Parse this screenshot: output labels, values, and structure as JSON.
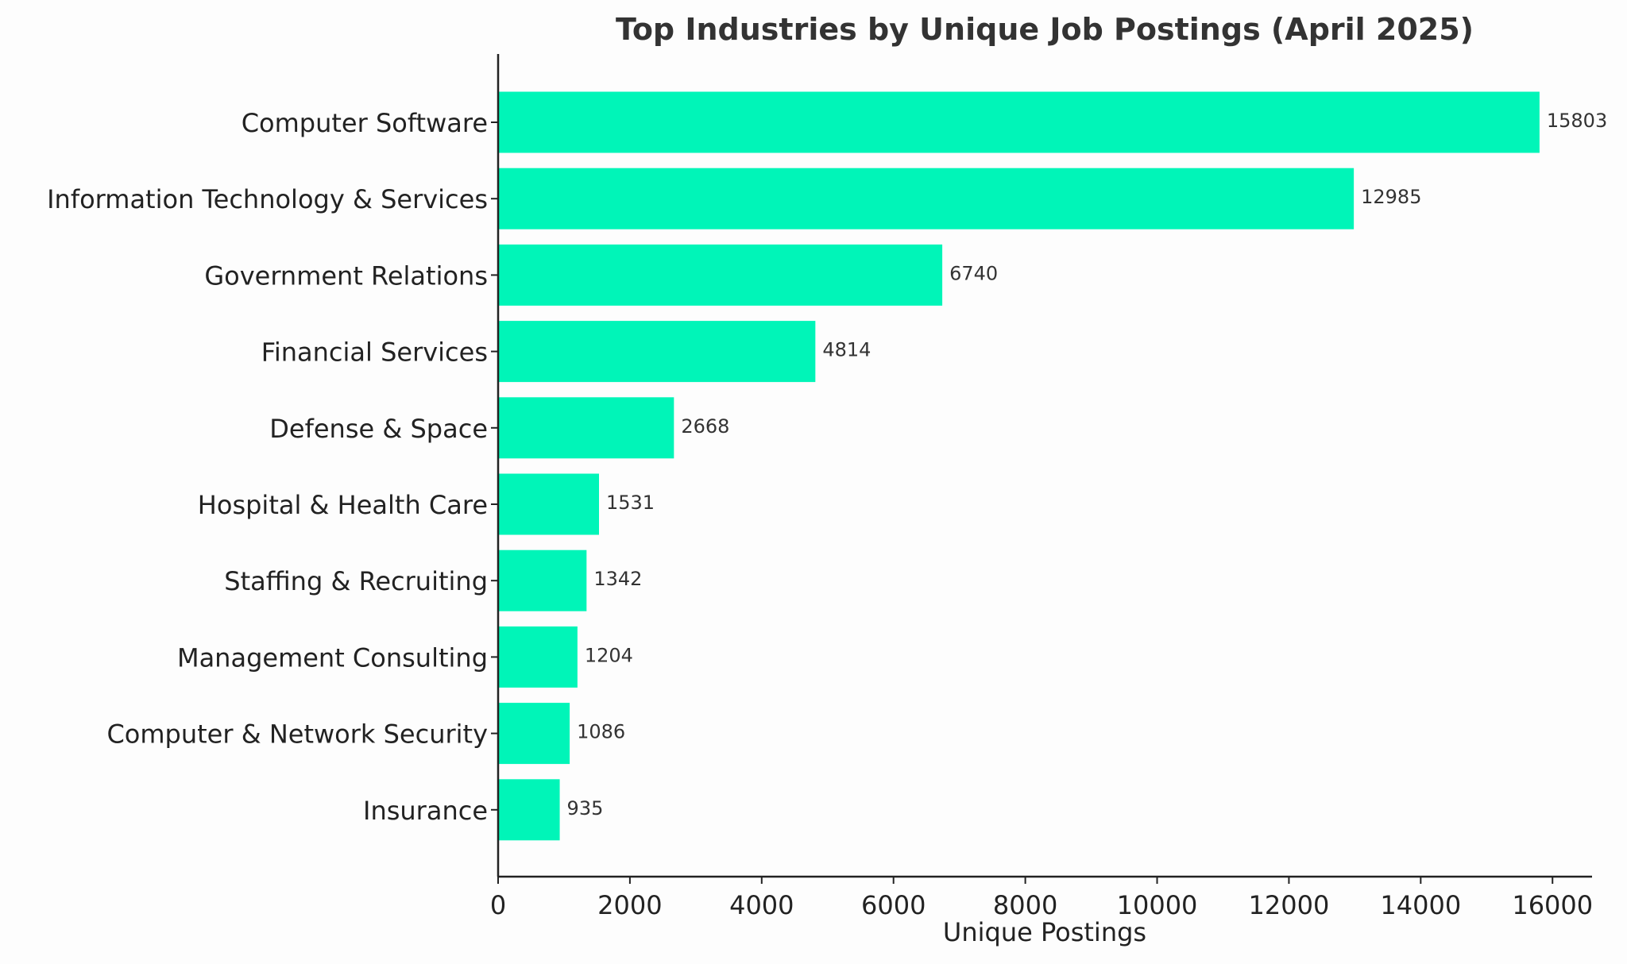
{
  "chart_data": {
    "type": "bar",
    "orientation": "horizontal",
    "title": "Top Industries by Unique Job Postings (April 2025)",
    "xlabel": "Unique Postings",
    "ylabel": "",
    "categories": [
      "Computer Software",
      "Information Technology & Services",
      "Government Relations",
      "Financial Services",
      "Defense & Space",
      "Hospital & Health Care",
      "Staffing & Recruiting",
      "Management Consulting",
      "Computer & Network Security",
      "Insurance"
    ],
    "values": [
      15803,
      12985,
      6740,
      4814,
      2668,
      1531,
      1342,
      1204,
      1086,
      935
    ],
    "value_labels": [
      "15803",
      "12985",
      "6740",
      "4814",
      "2668",
      "1531",
      "1342",
      "1204",
      "1086",
      "935"
    ],
    "xlim": [
      0,
      16600
    ],
    "xticks": [
      0,
      2000,
      4000,
      6000,
      8000,
      10000,
      12000,
      14000,
      16000
    ],
    "xtick_labels": [
      "0",
      "2000",
      "4000",
      "6000",
      "8000",
      "10000",
      "12000",
      "14000",
      "16000"
    ],
    "bar_color": "#00f5b8",
    "grid": false,
    "legend": "none"
  }
}
